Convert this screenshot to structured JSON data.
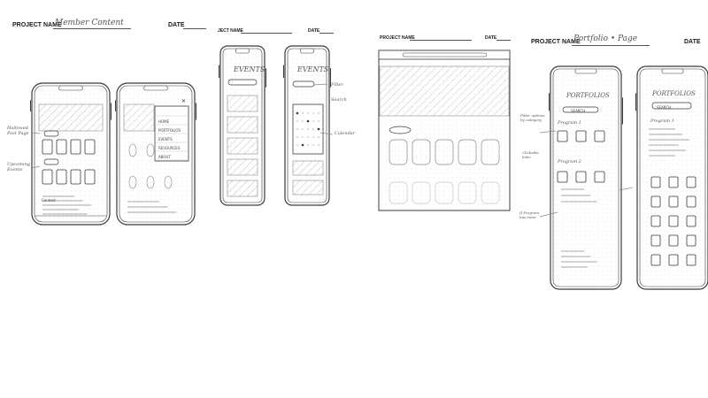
{
  "sheet1": {
    "project_label": "PROJECT NAME",
    "project_value": "Member Content",
    "date_label": "DATE",
    "menu_items": [
      "HOME",
      "PORTFOLIOS",
      "EVENTS",
      "RESOURCES",
      "ABOUT"
    ],
    "notes": [
      "Hallowed Post Page",
      "Upcoming Events",
      "Content"
    ]
  },
  "sheet2": {
    "project_label": "JECT NAME",
    "date_label": "DATE",
    "screen_title_a": "EVENTS",
    "screen_title_b": "EVENTS",
    "notes": [
      "Filter",
      "Search",
      "Calendar"
    ]
  },
  "sheet3": {
    "project_label": "PROJECT NAME",
    "date_label": "DATE"
  },
  "sheet4": {
    "project_label": "PROJECT NAME",
    "project_value": "Portfolio • Page",
    "date_label": "DATE",
    "screen_title_a": "PORTFOLIOS",
    "screen_title_b": "PORTFOLIOS",
    "search_a": "SEARCH",
    "search_b": "SEARCH",
    "section_a": "Program 1",
    "section_b": "Program 2",
    "section_c": "Program 1",
    "notes": [
      "Filter options by category",
      "Clickable links",
      "If Program has more"
    ]
  }
}
